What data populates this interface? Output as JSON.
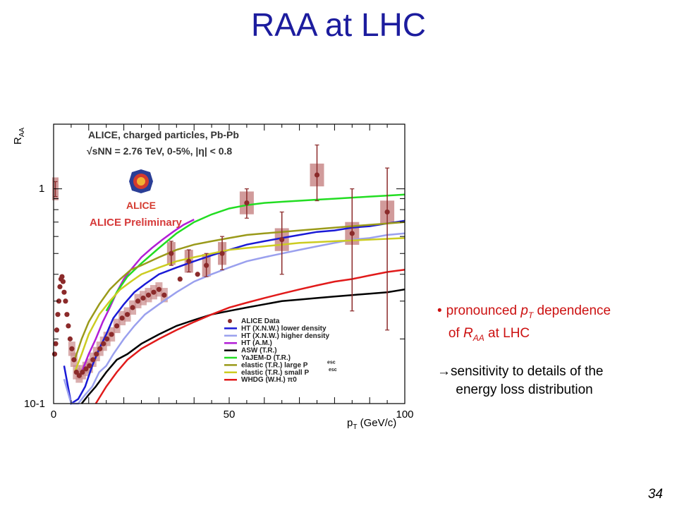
{
  "slide": {
    "title": "RAA at LHC",
    "page_number": "34",
    "bullet1_prefix": "pronounced ",
    "bullet1_p": "p",
    "bullet1_T": "T",
    "bullet1_mid": " dependence",
    "bullet1_line2_pre": "of ",
    "bullet1_R": "R",
    "bullet1_AA": "AA",
    "bullet1_line2_post": " at LHC",
    "bullet2_arrow": "→",
    "bullet2_line1": "sensitivity to details of the",
    "bullet2_line2": "energy loss distribution"
  },
  "chart_data": {
    "type": "scatter",
    "ylabel": "RAA",
    "xlabel": "pT (GeV/c)",
    "xlim": [
      0,
      100
    ],
    "ylim": [
      0.1,
      2.0
    ],
    "ylog": true,
    "x_ticks": [
      "0",
      "50",
      "100"
    ],
    "y_ticks": [
      "10-1",
      "1"
    ],
    "header_line1": "ALICE, charged particles, Pb-Pb",
    "header_line2": "√sNN = 2.76 TeV, 0-5%, |η| < 0.8",
    "logo_text": "ALICE",
    "preliminary": "ALICE Preliminary",
    "colors": {
      "data": "#8b2a2a",
      "sys": "#c98a8a",
      "ht_lower": "#1a1ad6",
      "ht_higher": "#9aa0ee",
      "ht_am": "#b21ed6",
      "asw": "#000000",
      "yajem": "#22dd22",
      "el_large": "#9a9a1a",
      "el_small": "#cccc22",
      "whdg": "#e11a1a"
    },
    "legend": [
      {
        "key": "data",
        "label": "ALICE Data"
      },
      {
        "key": "ht_lower",
        "label": "HT (X.N.W.) lower density"
      },
      {
        "key": "ht_higher",
        "label": "HT (X.N.W.) higher density"
      },
      {
        "key": "ht_am",
        "label": "HT (A.M.)"
      },
      {
        "key": "asw",
        "label": "ASW (T.R.)"
      },
      {
        "key": "yajem",
        "label": "YaJEM-D (T.R.)"
      },
      {
        "key": "el_large",
        "label": "elastic (T.R.) large P"
      },
      {
        "key": "el_small",
        "label": "elastic (T.R.) small P"
      },
      {
        "key": "whdg",
        "label": "WHDG (W.H.) π0"
      }
    ],
    "legend_superscript": "esc",
    "data_points": [
      {
        "x": 0.3,
        "y": 0.17
      },
      {
        "x": 0.6,
        "y": 0.19
      },
      {
        "x": 0.9,
        "y": 0.22
      },
      {
        "x": 1.2,
        "y": 0.26
      },
      {
        "x": 1.5,
        "y": 0.3
      },
      {
        "x": 1.8,
        "y": 0.35
      },
      {
        "x": 2.1,
        "y": 0.38
      },
      {
        "x": 2.4,
        "y": 0.39
      },
      {
        "x": 2.7,
        "y": 0.37
      },
      {
        "x": 3.0,
        "y": 0.33
      },
      {
        "x": 3.4,
        "y": 0.3
      },
      {
        "x": 3.8,
        "y": 0.26
      },
      {
        "x": 4.2,
        "y": 0.23
      },
      {
        "x": 4.7,
        "y": 0.2
      },
      {
        "x": 5.2,
        "y": 0.18
      },
      {
        "x": 5.8,
        "y": 0.16
      },
      {
        "x": 6.5,
        "y": 0.14
      },
      {
        "x": 7.3,
        "y": 0.135
      },
      {
        "x": 8.2,
        "y": 0.14
      },
      {
        "x": 9.2,
        "y": 0.145
      },
      {
        "x": 10.2,
        "y": 0.15
      },
      {
        "x": 11.2,
        "y": 0.16
      },
      {
        "x": 12.2,
        "y": 0.17
      },
      {
        "x": 13.2,
        "y": 0.18
      },
      {
        "x": 14.2,
        "y": 0.19
      },
      {
        "x": 15.2,
        "y": 0.2
      },
      {
        "x": 16.5,
        "y": 0.21
      },
      {
        "x": 18,
        "y": 0.23
      },
      {
        "x": 19.5,
        "y": 0.25
      },
      {
        "x": 21,
        "y": 0.26
      },
      {
        "x": 22.5,
        "y": 0.28
      },
      {
        "x": 24,
        "y": 0.3
      },
      {
        "x": 25.5,
        "y": 0.31
      },
      {
        "x": 27,
        "y": 0.32
      },
      {
        "x": 28.5,
        "y": 0.33
      },
      {
        "x": 30,
        "y": 0.34
      },
      {
        "x": 31.5,
        "y": 0.32
      },
      {
        "x": 33.5,
        "y": 0.5
      },
      {
        "x": 36,
        "y": 0.38
      },
      {
        "x": 38.5,
        "y": 0.46
      },
      {
        "x": 41,
        "y": 0.4
      },
      {
        "x": 43.5,
        "y": 0.44
      },
      {
        "x": 48,
        "y": 0.5
      },
      {
        "x": 55,
        "y": 0.86
      },
      {
        "x": 65,
        "y": 0.58
      },
      {
        "x": 75,
        "y": 1.16
      },
      {
        "x": 85,
        "y": 0.62
      },
      {
        "x": 95,
        "y": 0.78
      }
    ],
    "series": [
      {
        "key": "ht_lower",
        "x": [
          3,
          5,
          7,
          9,
          11,
          13,
          15,
          17,
          20,
          23,
          26,
          30,
          35,
          40,
          45,
          50,
          55,
          60,
          65,
          70,
          75,
          80,
          85,
          90,
          95,
          100
        ],
        "y": [
          0.15,
          0.1,
          0.105,
          0.12,
          0.15,
          0.18,
          0.21,
          0.25,
          0.29,
          0.33,
          0.36,
          0.4,
          0.43,
          0.46,
          0.49,
          0.52,
          0.55,
          0.57,
          0.59,
          0.61,
          0.63,
          0.64,
          0.66,
          0.67,
          0.69,
          0.71
        ]
      },
      {
        "key": "ht_higher",
        "x": [
          3,
          5,
          7,
          9,
          11,
          13,
          15,
          17,
          20,
          23,
          26,
          30,
          35,
          40,
          45,
          50,
          55,
          60,
          65,
          70,
          75,
          80,
          85,
          90,
          95,
          100
        ],
        "y": [
          0.13,
          0.1,
          0.1,
          0.11,
          0.12,
          0.14,
          0.15,
          0.17,
          0.2,
          0.23,
          0.26,
          0.29,
          0.33,
          0.37,
          0.4,
          0.43,
          0.46,
          0.48,
          0.5,
          0.52,
          0.54,
          0.56,
          0.58,
          0.59,
          0.61,
          0.62
        ]
      },
      {
        "key": "ht_am",
        "x": [
          8,
          10,
          12,
          14,
          16,
          18,
          20,
          22,
          25,
          28,
          31,
          34,
          37,
          40
        ],
        "y": [
          0.14,
          0.17,
          0.2,
          0.24,
          0.28,
          0.33,
          0.38,
          0.42,
          0.48,
          0.53,
          0.58,
          0.63,
          0.68,
          0.72
        ]
      },
      {
        "key": "asw",
        "x": [
          8,
          10,
          12,
          15,
          18,
          21,
          25,
          30,
          35,
          40,
          45,
          50,
          55,
          60,
          65,
          70,
          75,
          80,
          85,
          90,
          95,
          100
        ],
        "y": [
          0.1,
          0.11,
          0.12,
          0.14,
          0.16,
          0.17,
          0.19,
          0.21,
          0.23,
          0.245,
          0.26,
          0.27,
          0.28,
          0.29,
          0.3,
          0.305,
          0.31,
          0.315,
          0.32,
          0.325,
          0.33,
          0.34
        ]
      },
      {
        "key": "yajem",
        "x": [
          15,
          18,
          21,
          25,
          30,
          35,
          40,
          45,
          50,
          55,
          60,
          65,
          70,
          75,
          80,
          85,
          90,
          95,
          100
        ],
        "y": [
          0.27,
          0.33,
          0.39,
          0.45,
          0.53,
          0.62,
          0.7,
          0.76,
          0.81,
          0.84,
          0.86,
          0.87,
          0.88,
          0.89,
          0.9,
          0.91,
          0.92,
          0.93,
          0.94
        ]
      },
      {
        "key": "el_large",
        "x": [
          6,
          8,
          10,
          13,
          16,
          19,
          22,
          25,
          30,
          35,
          40,
          45,
          50,
          55,
          60,
          65,
          70,
          75,
          80,
          85,
          90,
          95,
          100
        ],
        "y": [
          0.16,
          0.2,
          0.24,
          0.29,
          0.34,
          0.38,
          0.42,
          0.44,
          0.48,
          0.52,
          0.55,
          0.57,
          0.59,
          0.61,
          0.62,
          0.63,
          0.64,
          0.65,
          0.66,
          0.67,
          0.68,
          0.69,
          0.7
        ]
      },
      {
        "key": "el_small",
        "x": [
          6,
          8,
          10,
          13,
          16,
          19,
          22,
          25,
          30,
          35,
          40,
          45,
          50,
          55,
          60,
          65,
          70,
          75,
          80,
          85,
          90,
          95,
          100
        ],
        "y": [
          0.14,
          0.17,
          0.21,
          0.26,
          0.3,
          0.34,
          0.37,
          0.4,
          0.43,
          0.46,
          0.48,
          0.5,
          0.52,
          0.53,
          0.54,
          0.55,
          0.56,
          0.565,
          0.57,
          0.575,
          0.58,
          0.585,
          0.59
        ]
      },
      {
        "key": "whdg",
        "x": [
          12,
          15,
          18,
          21,
          25,
          30,
          35,
          40,
          45,
          50,
          55,
          60,
          65,
          70,
          75,
          80,
          85,
          90,
          95,
          100
        ],
        "y": [
          0.1,
          0.12,
          0.14,
          0.16,
          0.18,
          0.2,
          0.22,
          0.24,
          0.26,
          0.28,
          0.295,
          0.31,
          0.325,
          0.34,
          0.355,
          0.37,
          0.38,
          0.395,
          0.41,
          0.42
        ]
      }
    ],
    "error_points": [
      {
        "x": 0.5,
        "y": 1.0,
        "lo": 0.92,
        "hi": 1.08
      },
      {
        "x": 33.5,
        "y": 0.5,
        "lo": 0.44,
        "hi": 0.57
      },
      {
        "x": 38.5,
        "y": 0.46,
        "lo": 0.41,
        "hi": 0.52
      },
      {
        "x": 43.5,
        "y": 0.44,
        "lo": 0.39,
        "hi": 0.5
      },
      {
        "x": 48,
        "y": 0.5,
        "lo": 0.42,
        "hi": 0.6
      },
      {
        "x": 55,
        "y": 0.86,
        "lo": 0.73,
        "hi": 1.0
      },
      {
        "x": 65,
        "y": 0.58,
        "lo": 0.4,
        "hi": 0.78
      },
      {
        "x": 75,
        "y": 1.16,
        "lo": 0.88,
        "hi": 1.6
      },
      {
        "x": 85,
        "y": 0.62,
        "lo": 0.27,
        "hi": 1.0
      },
      {
        "x": 95,
        "y": 0.78,
        "lo": 0.22,
        "hi": 1.25
      }
    ]
  }
}
